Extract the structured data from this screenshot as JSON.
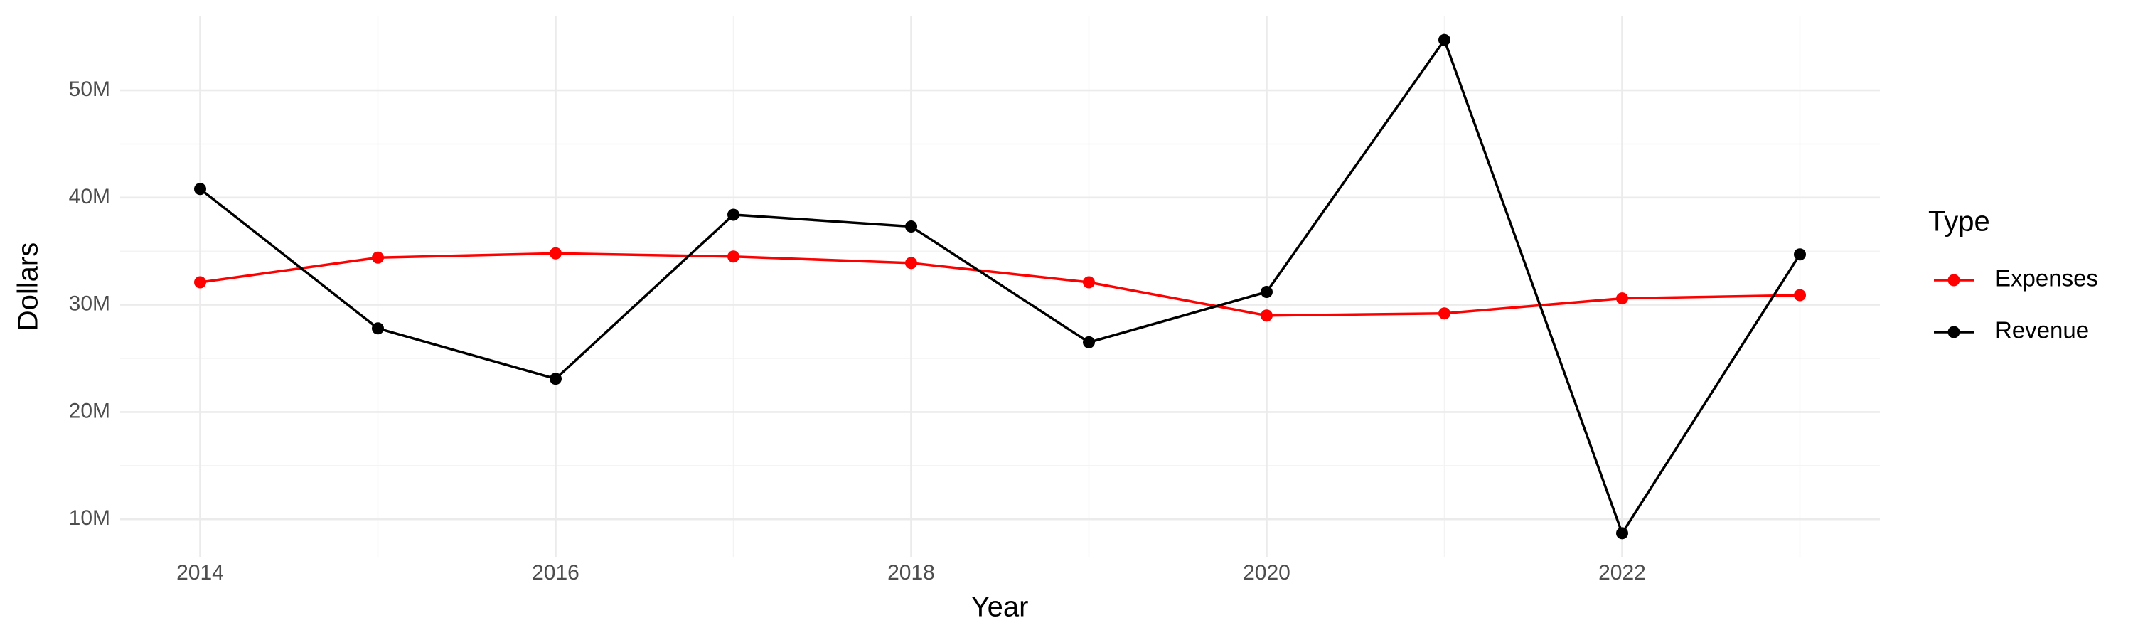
{
  "chart_data": {
    "type": "line",
    "x_label": "Year",
    "y_label": "Dollars",
    "legend_title": "Type",
    "x": [
      2014,
      2015,
      2016,
      2017,
      2018,
      2019,
      2020,
      2021,
      2022,
      2023
    ],
    "series": [
      {
        "name": "Expenses",
        "color": "#ff0000",
        "values": [
          32100000,
          34400000,
          34800000,
          34500000,
          33900000,
          32100000,
          29000000,
          29200000,
          30600000,
          30900000
        ]
      },
      {
        "name": "Revenue",
        "color": "#000000",
        "values": [
          40800000,
          27800000,
          23100000,
          38400000,
          37300000,
          26500000,
          31200000,
          54700000,
          8700000,
          34700000
        ]
      }
    ],
    "xlim": [
      2013.55,
      2023.45
    ],
    "xticks": [
      2014,
      2016,
      2018,
      2020,
      2022
    ],
    "ylim": [
      6500000,
      56900000
    ],
    "yticks": [
      {
        "value": 10000000,
        "label": "10M"
      },
      {
        "value": 20000000,
        "label": "20M"
      },
      {
        "value": 30000000,
        "label": "30M"
      },
      {
        "value": 40000000,
        "label": "40M"
      },
      {
        "value": 50000000,
        "label": "50M"
      }
    ],
    "grid": true,
    "legend": "right"
  }
}
